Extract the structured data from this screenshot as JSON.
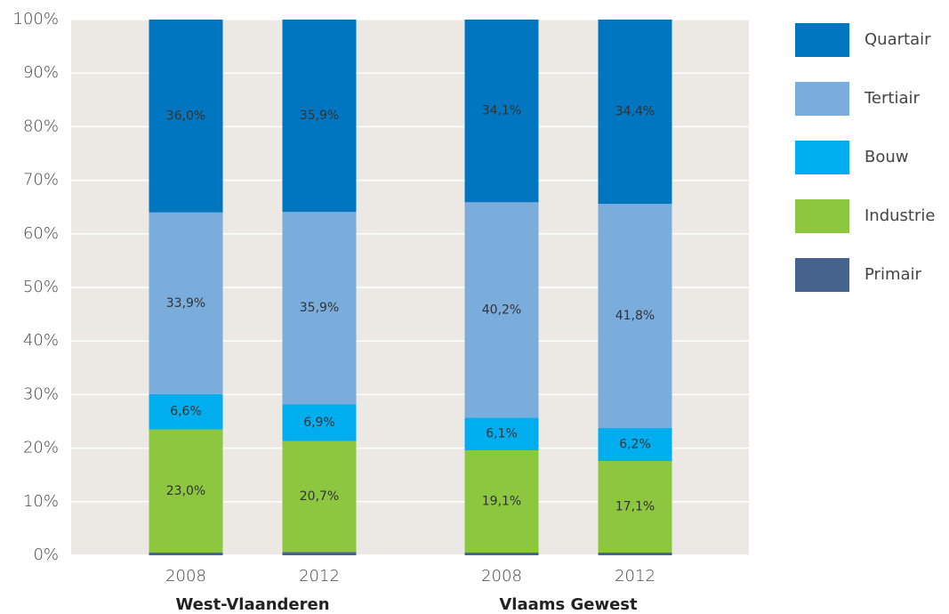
{
  "chart_data": {
    "type": "stacked_bar",
    "categories": [
      "2008",
      "2012",
      "2008",
      "2012"
    ],
    "groups": [
      "West-Vlaanderen",
      "Vlaams Gewest"
    ],
    "series": [
      {
        "name": "Primair",
        "color": "#45638c",
        "values": [
          0.5,
          0.6,
          0.5,
          0.5
        ],
        "value_labels": [
          "0,5%",
          "0,6%",
          "0,5%",
          "0,5%"
        ]
      },
      {
        "name": "Industrie",
        "color": "#8dc63f",
        "values": [
          23.0,
          20.7,
          19.1,
          17.1
        ],
        "value_labels": [
          "23,0%",
          "20,7%",
          "19,1%",
          "17,1%"
        ]
      },
      {
        "name": "Bouw",
        "color": "#00aeef",
        "values": [
          6.6,
          6.9,
          6.1,
          6.2
        ],
        "value_labels": [
          "6,6%",
          "6,9%",
          "6,1%",
          "6,2%"
        ]
      },
      {
        "name": "Tertiair",
        "color": "#7aacdc",
        "values": [
          33.9,
          35.9,
          40.2,
          41.8
        ],
        "value_labels": [
          "33,9%",
          "35,9%",
          "40,2%",
          "41,8%"
        ]
      },
      {
        "name": "Quartair",
        "color": "#0076c0",
        "values": [
          36.0,
          35.9,
          34.1,
          34.4
        ],
        "value_labels": [
          "36,0%",
          "35,9%",
          "34,1%",
          "34,4%"
        ]
      }
    ],
    "ylim": [
      0,
      100
    ],
    "yticks": [
      {
        "value": 0,
        "label": "0%"
      },
      {
        "value": 10,
        "label": "10%"
      },
      {
        "value": 20,
        "label": "20%"
      },
      {
        "value": 30,
        "label": "30%"
      },
      {
        "value": 40,
        "label": "40%"
      },
      {
        "value": 50,
        "label": "50%"
      },
      {
        "value": 60,
        "label": "60%"
      },
      {
        "value": 70,
        "label": "70%"
      },
      {
        "value": 80,
        "label": "80%"
      },
      {
        "value": 90,
        "label": "90%"
      },
      {
        "value": 100,
        "label": "100%"
      }
    ],
    "grid": true,
    "legend": "right"
  }
}
